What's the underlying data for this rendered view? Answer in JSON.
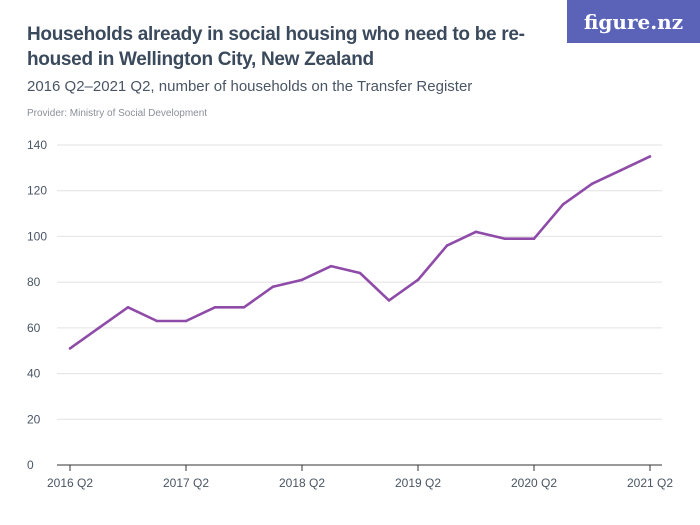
{
  "header": {
    "title": "Households already in social housing who need to be re-housed in Wellington City, New Zealand",
    "subtitle": "2016 Q2–2021 Q2, number of households on the Transfer Register",
    "provider": "Provider: Ministry of Social Development",
    "logo": "figure.nz"
  },
  "colors": {
    "line": "#8e4ba8",
    "grid": "#e2e2e2",
    "logo_bg": "#5a63b8"
  },
  "chart_data": {
    "type": "line",
    "title": "Households already in social housing who need to be re-housed in Wellington City, New Zealand",
    "x": [
      "2016 Q2",
      "2016 Q3",
      "2016 Q4",
      "2017 Q1",
      "2017 Q2",
      "2017 Q3",
      "2017 Q4",
      "2018 Q1",
      "2018 Q2",
      "2018 Q3",
      "2018 Q4",
      "2019 Q1",
      "2019 Q2",
      "2019 Q3",
      "2019 Q4",
      "2020 Q1",
      "2020 Q2",
      "2020 Q3",
      "2020 Q4",
      "2021 Q1",
      "2021 Q2"
    ],
    "values": [
      51,
      60,
      69,
      63,
      63,
      69,
      69,
      78,
      81,
      87,
      84,
      72,
      81,
      96,
      102,
      99,
      99,
      114,
      123,
      129,
      135
    ],
    "xticks": [
      "2016 Q2",
      "2017 Q2",
      "2018 Q2",
      "2019 Q2",
      "2020 Q2",
      "2021 Q2"
    ],
    "yticks": [
      0,
      20,
      40,
      60,
      80,
      100,
      120,
      140
    ],
    "ylim": [
      0,
      140
    ],
    "grid": true
  }
}
